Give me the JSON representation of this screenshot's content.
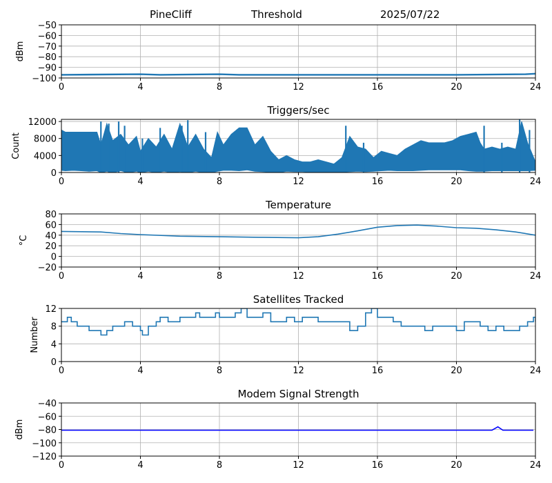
{
  "header": {
    "station": "PineCliff",
    "mode": "Threshold",
    "date": "2025/07/22"
  },
  "chart_data": [
    {
      "type": "line",
      "title": "",
      "ylabel": "dBm",
      "xlim": [
        0,
        24
      ],
      "ylim": [
        -100,
        -50
      ],
      "xticks": [
        0,
        4,
        8,
        12,
        16,
        20,
        24
      ],
      "yticks": [
        -50,
        -60,
        -70,
        -80,
        -90,
        -100
      ],
      "grid": true,
      "color": "#1f77b4",
      "line_width": 2.4,
      "series": [
        {
          "x": [
            0,
            4,
            5,
            8,
            9,
            12,
            16,
            20,
            23.5,
            24
          ],
          "y": [
            -97,
            -96.5,
            -97,
            -96.5,
            -97,
            -97,
            -97,
            -97,
            -96.5,
            -96
          ]
        }
      ]
    },
    {
      "type": "area",
      "title": "Triggers/sec",
      "ylabel": "Count",
      "xlim": [
        0,
        24
      ],
      "ylim": [
        0,
        12500
      ],
      "xticks": [
        0,
        4,
        8,
        12,
        16,
        20,
        24
      ],
      "yticks": [
        0,
        4000,
        8000,
        12000
      ],
      "grid": true,
      "color": "#1f77b4",
      "series": [
        {
          "x": [
            0,
            0.2,
            0.6,
            1,
            1.4,
            1.8,
            2,
            2.3,
            2.6,
            3,
            3.4,
            3.8,
            4,
            4.4,
            4.8,
            5.2,
            5.6,
            6,
            6.4,
            6.8,
            7.2,
            7.6,
            7.9,
            8.2,
            8.6,
            9,
            9.4,
            9.8,
            10.2,
            10.6,
            11,
            11.4,
            11.8,
            12.2,
            12.6,
            13,
            13.4,
            13.8,
            14.2,
            14.6,
            15,
            15.4,
            15.8,
            16.2,
            16.6,
            17,
            17.4,
            17.8,
            18.2,
            18.6,
            19,
            19.4,
            19.8,
            20.2,
            20.6,
            21,
            21.2,
            21.4,
            21.8,
            22.2,
            22.6,
            23,
            23.3,
            23.6,
            24
          ],
          "y_low": [
            500,
            400,
            500,
            400,
            300,
            400,
            0,
            300,
            0,
            400,
            0,
            300,
            0,
            300,
            0,
            300,
            0,
            200,
            0,
            300,
            0,
            0,
            300,
            500,
            500,
            400,
            600,
            300,
            200,
            100,
            0,
            300,
            200,
            200,
            100,
            100,
            100,
            100,
            100,
            200,
            300,
            200,
            300,
            400,
            500,
            400,
            400,
            400,
            500,
            600,
            600,
            600,
            600,
            600,
            400,
            300,
            300,
            300,
            400,
            400,
            400,
            400,
            400,
            400,
            500
          ],
          "y_high": [
            10000,
            9500,
            9500,
            9500,
            9500,
            9500,
            6500,
            11500,
            7500,
            9000,
            6500,
            8500,
            5000,
            8000,
            6000,
            9000,
            5500,
            11500,
            6000,
            9000,
            5500,
            3500,
            9500,
            6500,
            9000,
            10500,
            10500,
            6500,
            8500,
            5000,
            3000,
            4000,
            3000,
            2500,
            2500,
            3000,
            2500,
            2000,
            3500,
            8500,
            6000,
            5500,
            3500,
            5000,
            4500,
            4000,
            5500,
            6500,
            7500,
            7000,
            7000,
            7000,
            7500,
            8500,
            9000,
            9500,
            7000,
            5500,
            6000,
            5500,
            6000,
            5500,
            12000,
            7000,
            2500
          ],
          "spikes": [
            {
              "x": 2.0,
              "y": 12000
            },
            {
              "x": 2.4,
              "y": 11500
            },
            {
              "x": 2.9,
              "y": 12000
            },
            {
              "x": 3.2,
              "y": 11000
            },
            {
              "x": 4.1,
              "y": 8000
            },
            {
              "x": 5.0,
              "y": 10500
            },
            {
              "x": 6.1,
              "y": 11000
            },
            {
              "x": 6.4,
              "y": 12300
            },
            {
              "x": 7.3,
              "y": 9500
            },
            {
              "x": 14.4,
              "y": 11000
            },
            {
              "x": 15.3,
              "y": 7000
            },
            {
              "x": 21.4,
              "y": 11000
            },
            {
              "x": 22.3,
              "y": 7000
            },
            {
              "x": 23.2,
              "y": 12500
            },
            {
              "x": 23.7,
              "y": 10000
            }
          ]
        }
      ]
    },
    {
      "type": "line",
      "title": "Temperature",
      "ylabel": "°C",
      "xlim": [
        0,
        24
      ],
      "ylim": [
        -20,
        80
      ],
      "xticks": [
        0,
        4,
        8,
        12,
        16,
        20,
        24
      ],
      "yticks": [
        80,
        60,
        40,
        20,
        0,
        -20
      ],
      "grid": true,
      "color": "#1f77b4",
      "series": [
        {
          "x": [
            0,
            2,
            3,
            4,
            6,
            8,
            10,
            12,
            13,
            14,
            15,
            16,
            17,
            18,
            19,
            20,
            21,
            22,
            23,
            24
          ],
          "y": [
            47,
            46,
            43,
            41,
            38,
            37,
            36,
            35,
            37,
            42,
            48,
            55,
            58,
            59,
            57,
            54,
            53,
            50,
            46,
            40
          ]
        }
      ]
    },
    {
      "type": "line",
      "step": true,
      "title": "Satellites Tracked",
      "ylabel": "Number",
      "xlim": [
        0,
        24
      ],
      "ylim": [
        0,
        12
      ],
      "xticks": [
        0,
        4,
        8,
        12,
        16,
        20,
        24
      ],
      "yticks": [
        0,
        4,
        8,
        12
      ],
      "grid": true,
      "color": "#1f77b4",
      "series": [
        {
          "x": [
            0,
            0.3,
            0.5,
            0.8,
            1.0,
            1.4,
            1.8,
            2.0,
            2.3,
            2.6,
            3.0,
            3.2,
            3.6,
            4.0,
            4.1,
            4.4,
            4.8,
            5.0,
            5.4,
            5.8,
            6.0,
            6.4,
            6.8,
            7.0,
            7.4,
            7.8,
            8.0,
            8.4,
            8.8,
            9.1,
            9.4,
            9.8,
            10.2,
            10.6,
            11.0,
            11.4,
            11.8,
            12.2,
            12.6,
            13.0,
            13.4,
            13.8,
            14.2,
            14.6,
            15.0,
            15.4,
            15.7,
            16.0,
            16.4,
            16.8,
            17.2,
            17.6,
            18.0,
            18.4,
            18.8,
            19.2,
            19.6,
            20.0,
            20.4,
            20.8,
            21.2,
            21.6,
            22.0,
            22.4,
            22.8,
            23.2,
            23.6,
            23.9,
            24
          ],
          "y": [
            9,
            10,
            9,
            8,
            8,
            7,
            7,
            6,
            7,
            8,
            8,
            9,
            8,
            7,
            6,
            8,
            9,
            10,
            9,
            9,
            10,
            10,
            11,
            10,
            10,
            11,
            10,
            10,
            11,
            12,
            10,
            10,
            11,
            9,
            9,
            10,
            9,
            10,
            10,
            9,
            9,
            9,
            9,
            7,
            8,
            11,
            12,
            10,
            10,
            9,
            8,
            8,
            8,
            7,
            8,
            8,
            8,
            7,
            9,
            9,
            8,
            7,
            8,
            7,
            7,
            8,
            9,
            10,
            9
          ]
        }
      ]
    },
    {
      "type": "line",
      "title": "Modem Signal Strength",
      "ylabel": "dBm",
      "xlim": [
        0,
        24
      ],
      "ylim": [
        -120,
        -40
      ],
      "xticks": [
        0,
        4,
        8,
        12,
        16,
        20,
        24
      ],
      "yticks": [
        -40,
        -60,
        -80,
        -100,
        -120
      ],
      "grid": true,
      "color": "#0000ff",
      "series": [
        {
          "x": [
            0,
            21.8,
            22.1,
            22.35,
            23.9
          ],
          "y": [
            -81,
            -81,
            -76,
            -81,
            -81
          ]
        }
      ]
    }
  ]
}
